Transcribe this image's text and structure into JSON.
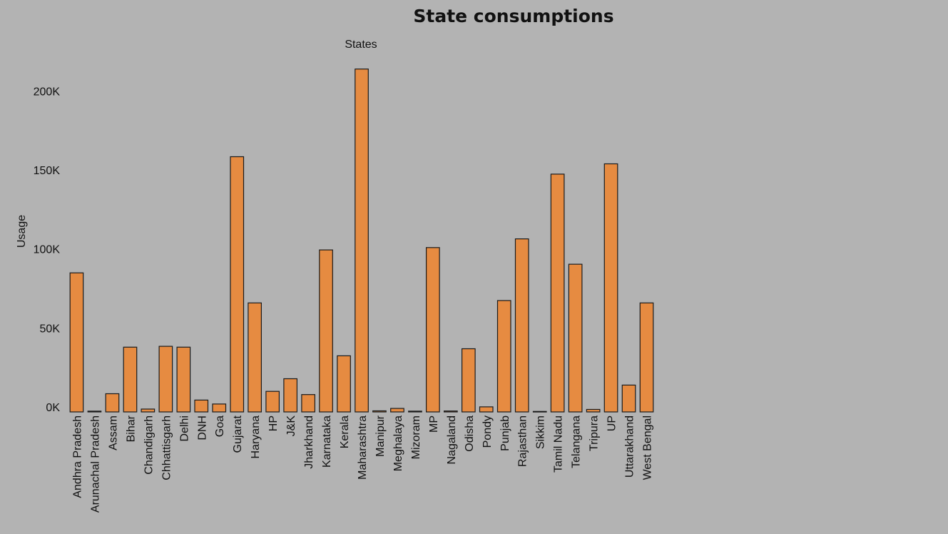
{
  "chart_data": {
    "type": "bar",
    "title": "State consumptions",
    "column_header": "States",
    "ylabel": "Usage",
    "xlabel": "",
    "ylim": [
      0,
      225000
    ],
    "yticks": [
      0,
      50000,
      100000,
      150000,
      200000
    ],
    "ytick_labels": [
      "0K",
      "50K",
      "100K",
      "150K",
      "200K"
    ],
    "grid": false,
    "bar_color": "#e68b41",
    "categories": [
      "Andhra Pradesh",
      "Arunachal Pradesh",
      "Assam",
      "Bihar",
      "Chandigarh",
      "Chhattisgarh",
      "Delhi",
      "DNH",
      "Goa",
      "Gujarat",
      "Haryana",
      "HP",
      "J&K",
      "Jharkhand",
      "Karnataka",
      "Kerala",
      "Maharashtra",
      "Manipur",
      "Meghalaya",
      "Mizoram",
      "MP",
      "Nagaland",
      "Odisha",
      "Pondy",
      "Punjab",
      "Rajasthan",
      "Sikkim",
      "Tamil Nadu",
      "Telangana",
      "Tripura",
      "UP",
      "Uttarakhand",
      "West Bengal"
    ],
    "values": [
      88000,
      500,
      11500,
      41000,
      1800,
      41500,
      41000,
      7500,
      5000,
      161500,
      69000,
      13000,
      21000,
      11000,
      102500,
      35500,
      217000,
      700,
      2200,
      500,
      104000,
      600,
      40000,
      3200,
      70500,
      109500,
      300,
      150500,
      93500,
      1600,
      157000,
      17000,
      69000
    ]
  }
}
